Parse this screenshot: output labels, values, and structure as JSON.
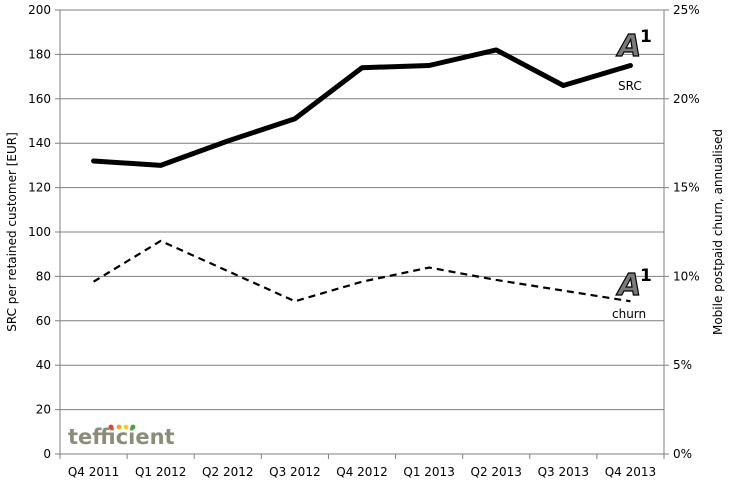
{
  "chart_data": {
    "type": "line",
    "categories": [
      "Q4 2011",
      "Q1 2012",
      "Q2 2012",
      "Q3 2012",
      "Q4 2012",
      "Q1 2013",
      "Q2 2013",
      "Q3 2013",
      "Q4 2013"
    ],
    "series": [
      {
        "name": "SRC",
        "axis": "left",
        "style": "solid",
        "color": "#000000",
        "values": [
          132,
          130,
          141,
          151,
          174,
          175,
          182,
          166,
          175
        ]
      },
      {
        "name": "churn",
        "axis": "right",
        "style": "dashed",
        "color": "#000000",
        "values": [
          9.7,
          12.0,
          10.3,
          8.6,
          9.7,
          10.5,
          9.8,
          9.2,
          8.6
        ]
      }
    ],
    "ylabel": "SRC per retained customer [EUR]",
    "ylabel_right": "Mobile postpaid churn, annualised",
    "ylim": [
      0,
      200
    ],
    "yticks": [
      0,
      20,
      40,
      60,
      80,
      100,
      120,
      140,
      160,
      180,
      200
    ],
    "ylim_right": [
      0,
      25
    ],
    "yticks_right": [
      "0%",
      "5%",
      "10%",
      "15%",
      "20%",
      "25%"
    ],
    "grid": true
  },
  "watermark": "tefficient",
  "logo": {
    "letter": "A",
    "superscript": "1"
  },
  "colors": {
    "background": "#ffffff",
    "grid": "#7f7f7f",
    "line": "#000000",
    "watermark_text": "#8c8c7a",
    "watermark_dots": [
      "#e8412a",
      "#f4a81c",
      "#f4d21c",
      "#37a84a"
    ]
  }
}
